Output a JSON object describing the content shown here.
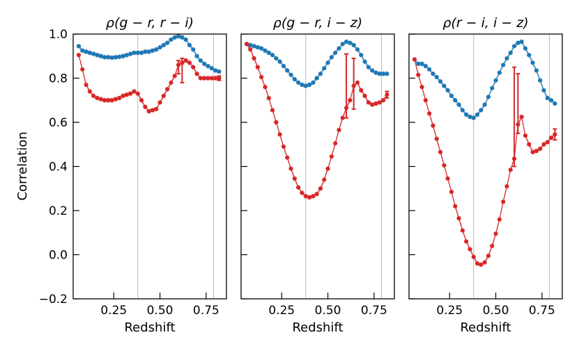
{
  "chart_data": {
    "type": "scatter",
    "ylabel": "Correlation",
    "xlabel": "Redshift",
    "ylim": [
      -0.2,
      1.0
    ],
    "xlim": [
      0.03,
      0.86
    ],
    "yticks": [
      "1.0",
      "0.8",
      "0.6",
      "0.4",
      "0.2",
      "0.0",
      "−0.2"
    ],
    "ytick_values": [
      1.0,
      0.8,
      0.6,
      0.4,
      0.2,
      0.0,
      -0.2
    ],
    "xticks": [
      "0.25",
      "0.50",
      "0.75"
    ],
    "xtick_values": [
      0.25,
      0.5,
      0.75
    ],
    "colors": {
      "blue": "#1f77b4",
      "red": "#d62728",
      "vline": "#b8b8b8"
    },
    "vlines": [
      0.38,
      0.79
    ],
    "panels": [
      {
        "title": "ρ(g − r, r − i)",
        "series": [
          {
            "name": "blue",
            "x": [
              0.06,
              0.08,
              0.1,
              0.12,
              0.14,
              0.16,
              0.18,
              0.2,
              0.22,
              0.24,
              0.26,
              0.28,
              0.3,
              0.32,
              0.34,
              0.36,
              0.38,
              0.4,
              0.42,
              0.44,
              0.46,
              0.48,
              0.5,
              0.52,
              0.54,
              0.56,
              0.58,
              0.6,
              0.62,
              0.64,
              0.66,
              0.68,
              0.7,
              0.72,
              0.74,
              0.76,
              0.78,
              0.8,
              0.82
            ],
            "y": [
              0.945,
              0.925,
              0.92,
              0.915,
              0.91,
              0.905,
              0.9,
              0.895,
              0.895,
              0.893,
              0.895,
              0.897,
              0.9,
              0.905,
              0.91,
              0.915,
              0.915,
              0.915,
              0.92,
              0.92,
              0.925,
              0.93,
              0.94,
              0.95,
              0.96,
              0.975,
              0.985,
              0.99,
              0.985,
              0.975,
              0.95,
              0.93,
              0.9,
              0.88,
              0.865,
              0.855,
              0.845,
              0.835,
              0.83
            ]
          },
          {
            "name": "red",
            "x": [
              0.06,
              0.08,
              0.1,
              0.12,
              0.14,
              0.16,
              0.18,
              0.2,
              0.22,
              0.24,
              0.26,
              0.28,
              0.3,
              0.32,
              0.34,
              0.36,
              0.38,
              0.4,
              0.42,
              0.44,
              0.46,
              0.48,
              0.5,
              0.52,
              0.54,
              0.56,
              0.58,
              0.6,
              0.62,
              0.64,
              0.66,
              0.68,
              0.7,
              0.72,
              0.74,
              0.76,
              0.78,
              0.8,
              0.82
            ],
            "y": [
              0.905,
              0.84,
              0.77,
              0.74,
              0.72,
              0.71,
              0.705,
              0.7,
              0.7,
              0.7,
              0.705,
              0.71,
              0.72,
              0.725,
              0.73,
              0.74,
              0.73,
              0.7,
              0.67,
              0.65,
              0.655,
              0.66,
              0.69,
              0.72,
              0.75,
              0.78,
              0.81,
              0.86,
              0.87,
              0.88,
              0.87,
              0.85,
              0.82,
              0.8,
              0.8,
              0.8,
              0.8,
              0.8,
              0.8
            ],
            "errors": [
              [
                0.6,
                0.88,
                0.82
              ],
              [
                0.62,
                0.89,
                0.78
              ],
              [
                0.82,
                0.81,
                0.79
              ]
            ]
          }
        ]
      },
      {
        "title": "ρ(g − r, i − z)",
        "series": [
          {
            "name": "blue",
            "x": [
              0.06,
              0.08,
              0.1,
              0.12,
              0.14,
              0.16,
              0.18,
              0.2,
              0.22,
              0.24,
              0.26,
              0.28,
              0.3,
              0.32,
              0.34,
              0.36,
              0.38,
              0.4,
              0.42,
              0.44,
              0.46,
              0.48,
              0.5,
              0.52,
              0.54,
              0.56,
              0.58,
              0.6,
              0.62,
              0.64,
              0.66,
              0.68,
              0.7,
              0.72,
              0.74,
              0.76,
              0.78,
              0.8,
              0.82
            ],
            "y": [
              0.955,
              0.95,
              0.945,
              0.94,
              0.935,
              0.925,
              0.915,
              0.905,
              0.89,
              0.875,
              0.855,
              0.835,
              0.815,
              0.795,
              0.78,
              0.77,
              0.765,
              0.77,
              0.78,
              0.8,
              0.82,
              0.845,
              0.87,
              0.895,
              0.915,
              0.935,
              0.955,
              0.965,
              0.96,
              0.95,
              0.93,
              0.905,
              0.875,
              0.85,
              0.835,
              0.825,
              0.82,
              0.82,
              0.82
            ]
          },
          {
            "name": "red",
            "x": [
              0.06,
              0.08,
              0.1,
              0.12,
              0.14,
              0.16,
              0.18,
              0.2,
              0.22,
              0.24,
              0.26,
              0.28,
              0.3,
              0.32,
              0.34,
              0.36,
              0.38,
              0.4,
              0.42,
              0.44,
              0.46,
              0.48,
              0.5,
              0.52,
              0.54,
              0.56,
              0.58,
              0.6,
              0.62,
              0.64,
              0.66,
              0.68,
              0.7,
              0.72,
              0.74,
              0.76,
              0.78,
              0.8,
              0.82
            ],
            "y": [
              0.955,
              0.93,
              0.89,
              0.85,
              0.805,
              0.76,
              0.71,
              0.655,
              0.6,
              0.545,
              0.49,
              0.44,
              0.39,
              0.345,
              0.305,
              0.28,
              0.265,
              0.26,
              0.265,
              0.275,
              0.3,
              0.34,
              0.39,
              0.445,
              0.505,
              0.565,
              0.62,
              0.665,
              0.7,
              0.765,
              0.78,
              0.745,
              0.72,
              0.69,
              0.68,
              0.685,
              0.69,
              0.7,
              0.725
            ],
            "errors": [
              [
                0.6,
                0.91,
                0.62
              ],
              [
                0.64,
                0.89,
                0.66
              ],
              [
                0.82,
                0.74,
                0.71
              ]
            ]
          }
        ]
      },
      {
        "title": "ρ(r − i, i − z)",
        "series": [
          {
            "name": "blue",
            "x": [
              0.06,
              0.08,
              0.1,
              0.12,
              0.14,
              0.16,
              0.18,
              0.2,
              0.22,
              0.24,
              0.26,
              0.28,
              0.3,
              0.32,
              0.34,
              0.36,
              0.38,
              0.4,
              0.42,
              0.44,
              0.46,
              0.48,
              0.5,
              0.52,
              0.54,
              0.56,
              0.58,
              0.6,
              0.62,
              0.64,
              0.66,
              0.68,
              0.7,
              0.72,
              0.74,
              0.76,
              0.78,
              0.8,
              0.82
            ],
            "y": [
              0.885,
              0.865,
              0.865,
              0.855,
              0.84,
              0.82,
              0.805,
              0.785,
              0.765,
              0.745,
              0.72,
              0.7,
              0.68,
              0.655,
              0.635,
              0.625,
              0.62,
              0.635,
              0.655,
              0.68,
              0.715,
              0.755,
              0.79,
              0.825,
              0.86,
              0.89,
              0.915,
              0.945,
              0.96,
              0.965,
              0.935,
              0.905,
              0.87,
              0.835,
              0.79,
              0.745,
              0.71,
              0.7,
              0.685
            ]
          },
          {
            "name": "red",
            "x": [
              0.06,
              0.08,
              0.1,
              0.12,
              0.14,
              0.16,
              0.18,
              0.2,
              0.22,
              0.24,
              0.26,
              0.28,
              0.3,
              0.32,
              0.34,
              0.36,
              0.38,
              0.4,
              0.42,
              0.44,
              0.46,
              0.48,
              0.5,
              0.52,
              0.54,
              0.56,
              0.58,
              0.6,
              0.62,
              0.64,
              0.66,
              0.68,
              0.7,
              0.72,
              0.74,
              0.76,
              0.78,
              0.8,
              0.82
            ],
            "y": [
              0.885,
              0.815,
              0.76,
              0.7,
              0.64,
              0.585,
              0.525,
              0.465,
              0.405,
              0.345,
              0.285,
              0.22,
              0.165,
              0.11,
              0.06,
              0.025,
              -0.01,
              -0.04,
              -0.045,
              -0.035,
              -0.005,
              0.04,
              0.095,
              0.16,
              0.24,
              0.31,
              0.385,
              0.435,
              0.59,
              0.625,
              0.54,
              0.5,
              0.465,
              0.47,
              0.48,
              0.5,
              0.51,
              0.53,
              0.545
            ],
            "errors": [
              [
                0.6,
                0.85,
                0.4
              ],
              [
                0.62,
                0.82,
                0.55
              ],
              [
                0.82,
                0.57,
                0.52
              ]
            ]
          }
        ]
      }
    ]
  }
}
